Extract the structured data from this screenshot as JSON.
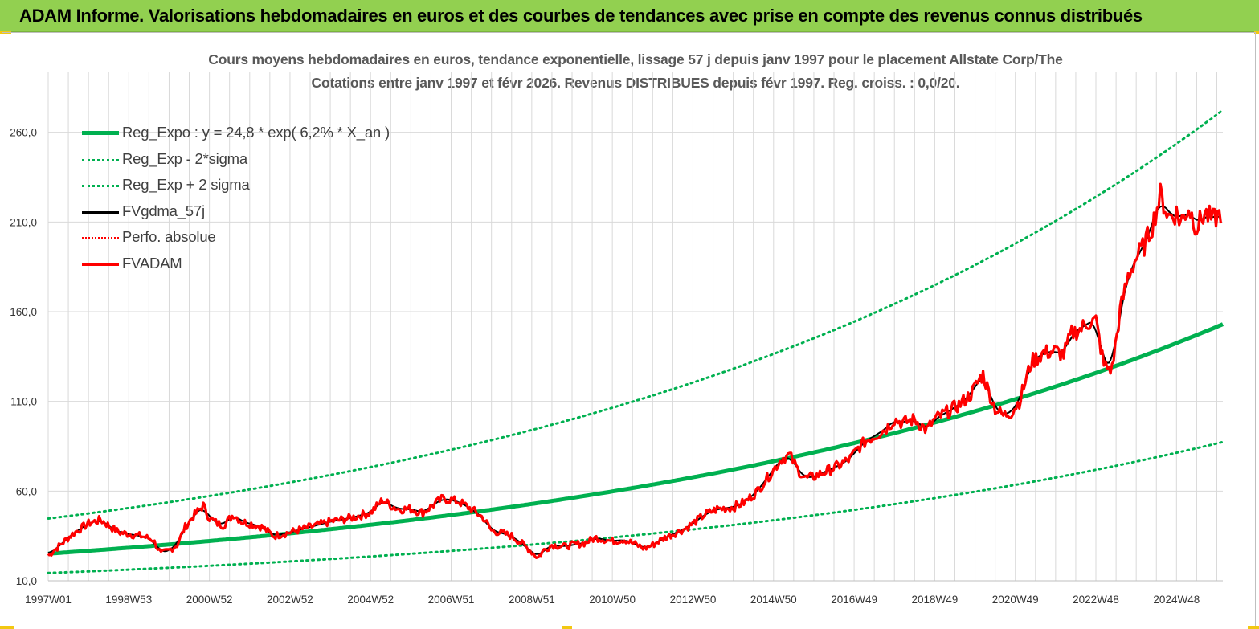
{
  "banner": {
    "title": "ADAM Informe. Valorisations hebdomadaires en euros et des courbes de tendances avec prise en compte des revenus connus distribués"
  },
  "colors": {
    "banner_bg": "#92d050",
    "reg_expo": "#00b050",
    "reg_band": "#00b050",
    "fvgdma": "#000000",
    "perfo": "#ff0000",
    "fvadam": "#ff0000",
    "grid": "#d9d9d9"
  },
  "chart_data": {
    "type": "line",
    "title_line1": "Cours moyens hebdomadaires en euros, tendance exponentielle, lissage 57 j depuis janv 1997 pour le placement Allstate Corp/The",
    "title_line2": "Cotations entre janv 1997 et févr 2026. Revenus DISTRIBUES depuis févr 1997. Reg. croiss. : 0,0/20.",
    "ylim": [
      10,
      280
    ],
    "yticks": [
      "10,0",
      "60,0",
      "110,0",
      "160,0",
      "210,0",
      "260,0"
    ],
    "xlim": [
      1997.0,
      2026.15
    ],
    "xticks": [
      "1997W01",
      "1998W53",
      "2000W52",
      "2002W52",
      "2004W52",
      "2006W51",
      "2008W51",
      "2010W50",
      "2012W50",
      "2014W50",
      "2016W49",
      "2018W49",
      "2020W49",
      "2022W48",
      "2024W48"
    ],
    "xtick_years": [
      1997.0,
      1999.0,
      2001.0,
      2003.0,
      2005.0,
      2007.0,
      2009.0,
      2011.0,
      2013.0,
      2015.0,
      2017.0,
      2019.0,
      2021.0,
      2023.0,
      2025.0
    ],
    "grid": true,
    "legend_position": "top-left",
    "regression": {
      "a": 24.8,
      "rate": 0.062,
      "band_low_factor": 0.571,
      "band_high_factor": 1.78
    },
    "series": [
      {
        "name": "Reg_Expo : y = 24,8 * exp( 6,2% *  X_an )",
        "style": "thick"
      },
      {
        "name": "Reg_Exp - 2*sigma",
        "style": "dotted"
      },
      {
        "name": "Reg_Exp + 2 sigma",
        "style": "dotted"
      },
      {
        "name": "FVgdma_57j",
        "style": "thin"
      },
      {
        "name": "Perfo. absolue",
        "style": "dotted"
      },
      {
        "name": "FVADAM",
        "style": "thick",
        "x": [
          1997.0,
          1997.3,
          1997.6,
          1998.0,
          1998.3,
          1998.55,
          1998.75,
          1999.0,
          1999.3,
          1999.6,
          1999.8,
          2000.0,
          2000.2,
          2000.4,
          2000.6,
          2000.85,
          2001.0,
          2001.2,
          2001.35,
          2001.6,
          2001.8,
          2002.0,
          2002.3,
          2002.6,
          2002.8,
          2003.0,
          2003.5,
          2004.0,
          2004.5,
          2005.0,
          2005.3,
          2005.5,
          2005.7,
          2006.0,
          2006.3,
          2006.6,
          2006.8,
          2007.0,
          2007.2,
          2007.5,
          2007.8,
          2008.0,
          2008.2,
          2008.5,
          2008.8,
          2009.0,
          2009.15,
          2009.3,
          2009.5,
          2009.8,
          2010.0,
          2010.3,
          2010.6,
          2011.0,
          2011.3,
          2011.6,
          2011.8,
          2012.0,
          2012.3,
          2012.6,
          2012.8,
          2013.0,
          2013.3,
          2013.6,
          2014.0,
          2014.3,
          2014.6,
          2014.8,
          2015.0,
          2015.2,
          2015.4,
          2015.6,
          2015.8,
          2016.0,
          2016.3,
          2016.6,
          2016.9,
          2017.1,
          2017.3,
          2017.6,
          2017.8,
          2018.0,
          2018.2,
          2018.5,
          2018.8,
          2019.0,
          2019.3,
          2019.6,
          2019.9,
          2020.1,
          2020.2,
          2020.3,
          2020.5,
          2020.7,
          2020.9,
          2021.1,
          2021.4,
          2021.7,
          2022.0,
          2022.2,
          2022.4,
          2022.6,
          2022.8,
          2023.0,
          2023.2,
          2023.4,
          2023.6,
          2023.8,
          2024.0,
          2024.2,
          2024.4,
          2024.6,
          2024.8,
          2025.0,
          2025.1,
          2025.3,
          2025.5,
          2025.7,
          2025.9,
          2026.1
        ],
        "y": [
          24,
          30,
          36,
          42,
          44,
          40,
          37,
          36,
          35,
          33,
          25,
          27,
          30,
          40,
          46,
          52,
          45,
          42,
          41,
          47,
          43,
          42,
          40,
          35,
          36,
          37,
          40,
          43,
          45,
          48,
          55,
          52,
          50,
          50,
          48,
          53,
          56,
          55,
          54,
          50,
          45,
          38,
          37,
          35,
          30,
          26,
          23,
          27,
          30,
          29,
          30,
          31,
          34,
          32,
          33,
          30,
          28,
          30,
          34,
          37,
          39,
          42,
          47,
          50,
          51,
          54,
          60,
          66,
          72,
          78,
          80,
          72,
          67,
          68,
          71,
          74,
          78,
          84,
          88,
          92,
          95,
          100,
          98,
          100,
          94,
          100,
          104,
          108,
          114,
          122,
          125,
          118,
          106,
          102,
          104,
          110,
          132,
          137,
          138,
          136,
          148,
          150,
          154,
          155,
          130,
          128,
          160,
          180,
          190,
          197,
          208,
          225,
          213,
          215,
          210,
          218,
          207,
          215,
          211,
          215
        ]
      }
    ]
  }
}
